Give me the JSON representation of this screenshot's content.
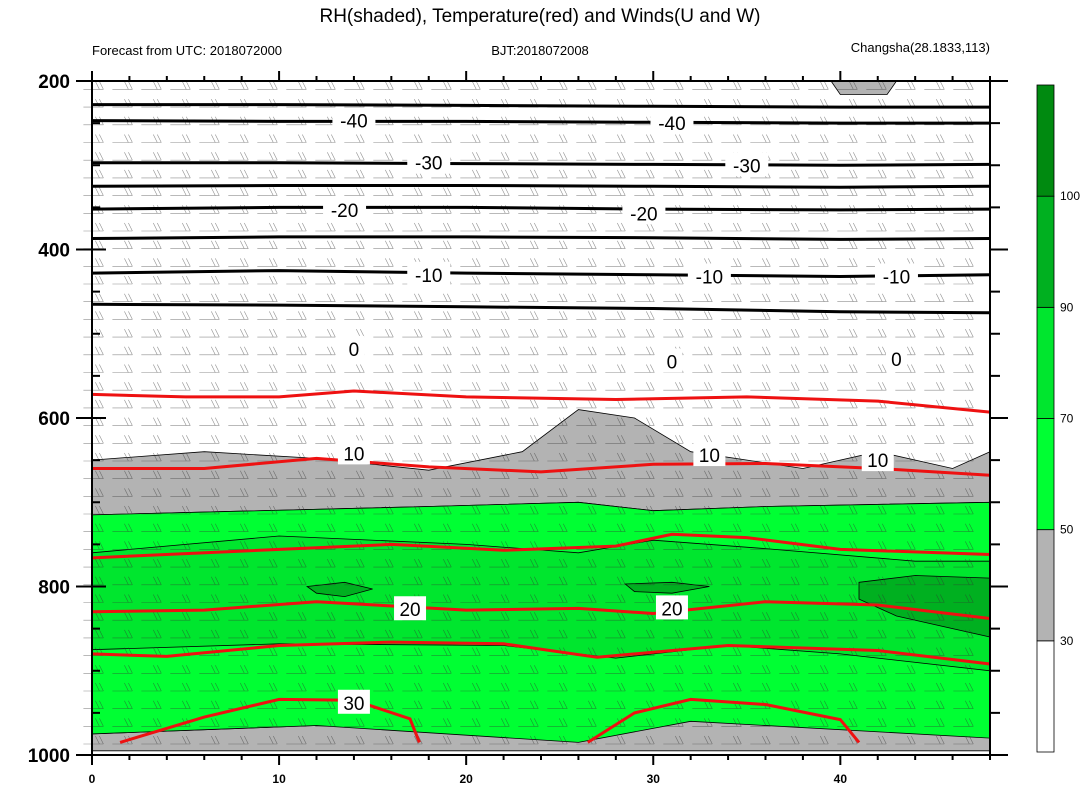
{
  "chart_data": {
    "type": "contour",
    "title": "RH(shaded), Temperature(red) and Winds(U and W)",
    "subtitle_left": "Forecast from UTC: 2018072000",
    "subtitle_center": "BJT:2018072008",
    "subtitle_right": "Changsha(28.1833,113)",
    "x_ticks": [
      0,
      10,
      20,
      30,
      40
    ],
    "xlim": [
      0,
      48
    ],
    "y_ticks": [
      200,
      400,
      600,
      800,
      1000
    ],
    "ylim": [
      1000,
      200
    ],
    "colorbar": {
      "ticks": [
        30,
        50,
        70,
        90,
        100
      ],
      "colors": [
        "#ffffff",
        "#b3b3b3",
        "#00ff33",
        "#00e62e",
        "#00b020",
        "#008a10"
      ]
    },
    "temperature_labels": [
      {
        "text": "-40",
        "x": 14.0,
        "p": 247
      },
      {
        "text": "-40",
        "x": 31.0,
        "p": 250
      },
      {
        "text": "-30",
        "x": 18.0,
        "p": 297
      },
      {
        "text": "-30",
        "x": 35.0,
        "p": 300
      },
      {
        "text": "-20",
        "x": 13.5,
        "p": 353
      },
      {
        "text": "-20",
        "x": 29.5,
        "p": 357
      },
      {
        "text": "-10",
        "x": 18.0,
        "p": 430
      },
      {
        "text": "-10",
        "x": 33.0,
        "p": 432
      },
      {
        "text": "-10",
        "x": 43.0,
        "p": 432
      },
      {
        "text": "0",
        "x": 14.0,
        "p": 518
      },
      {
        "text": "0",
        "x": 31.0,
        "p": 533
      },
      {
        "text": "0",
        "x": 43.0,
        "p": 530
      },
      {
        "text": "10",
        "x": 14.0,
        "p": 642
      },
      {
        "text": "10",
        "x": 33.0,
        "p": 644
      },
      {
        "text": "10",
        "x": 42.0,
        "p": 650
      },
      {
        "text": "20",
        "x": 17.0,
        "p": 827
      },
      {
        "text": "20",
        "x": 31.0,
        "p": 826
      },
      {
        "text": "30",
        "x": 14.0,
        "p": 938
      }
    ],
    "temperature_isotherms": [
      {
        "name": "-40",
        "color": "black",
        "points": [
          [
            0,
            228
          ],
          [
            10,
            228
          ],
          [
            20,
            229
          ],
          [
            30,
            230
          ],
          [
            40,
            231
          ],
          [
            48,
            231
          ]
        ]
      },
      {
        "name": "-40",
        "color": "black",
        "points": [
          [
            0,
            247
          ],
          [
            10,
            248
          ],
          [
            20,
            248
          ],
          [
            30,
            249
          ],
          [
            40,
            250
          ],
          [
            48,
            250
          ]
        ]
      },
      {
        "name": "-30",
        "color": "black",
        "points": [
          [
            0,
            297
          ],
          [
            10,
            297
          ],
          [
            20,
            298
          ],
          [
            30,
            299
          ],
          [
            40,
            300
          ],
          [
            48,
            299
          ]
        ]
      },
      {
        "name": "-30",
        "color": "black",
        "points": [
          [
            0,
            325
          ],
          [
            10,
            324
          ],
          [
            20,
            324
          ],
          [
            30,
            325
          ],
          [
            40,
            326
          ],
          [
            48,
            325
          ]
        ]
      },
      {
        "name": "-20",
        "color": "black",
        "points": [
          [
            0,
            352
          ],
          [
            10,
            350
          ],
          [
            20,
            350
          ],
          [
            30,
            352
          ],
          [
            40,
            353
          ],
          [
            48,
            352
          ]
        ]
      },
      {
        "name": "-20",
        "color": "black",
        "points": [
          [
            0,
            387
          ],
          [
            10,
            385
          ],
          [
            20,
            385
          ],
          [
            30,
            386
          ],
          [
            40,
            388
          ],
          [
            48,
            387
          ]
        ]
      },
      {
        "name": "-10",
        "color": "black",
        "points": [
          [
            0,
            428
          ],
          [
            10,
            425
          ],
          [
            20,
            428
          ],
          [
            30,
            430
          ],
          [
            40,
            432
          ],
          [
            48,
            430
          ]
        ]
      },
      {
        "name": "-10",
        "color": "black",
        "points": [
          [
            0,
            465
          ],
          [
            10,
            466
          ],
          [
            20,
            468
          ],
          [
            30,
            470
          ],
          [
            40,
            474
          ],
          [
            48,
            475
          ]
        ]
      },
      {
        "name": "0",
        "color": "red",
        "points": [
          [
            0,
            572
          ],
          [
            5,
            575
          ],
          [
            10,
            575
          ],
          [
            14,
            568
          ],
          [
            20,
            575
          ],
          [
            28,
            578
          ],
          [
            35,
            575
          ],
          [
            42,
            580
          ],
          [
            48,
            593
          ]
        ]
      },
      {
        "name": "10",
        "color": "red",
        "points": [
          [
            0,
            660
          ],
          [
            6,
            660
          ],
          [
            12,
            648
          ],
          [
            18,
            658
          ],
          [
            24,
            664
          ],
          [
            30,
            655
          ],
          [
            36,
            654
          ],
          [
            42,
            660
          ],
          [
            48,
            668
          ]
        ]
      },
      {
        "name": "20",
        "color": "red",
        "points": [
          [
            0,
            766
          ],
          [
            8,
            758
          ],
          [
            16,
            750
          ],
          [
            22,
            757
          ],
          [
            28,
            752
          ],
          [
            31,
            738
          ],
          [
            35,
            742
          ],
          [
            40,
            756
          ],
          [
            48,
            762
          ]
        ]
      },
      {
        "name": "20",
        "color": "red",
        "points": [
          [
            0,
            830
          ],
          [
            6,
            828
          ],
          [
            12,
            818
          ],
          [
            20,
            828
          ],
          [
            26,
            826
          ],
          [
            30,
            832
          ],
          [
            36,
            818
          ],
          [
            42,
            822
          ],
          [
            48,
            838
          ]
        ]
      },
      {
        "name": "20",
        "color": "red",
        "points": [
          [
            0,
            880
          ],
          [
            4,
            883
          ],
          [
            10,
            870
          ],
          [
            16,
            866
          ],
          [
            22,
            868
          ],
          [
            27,
            884
          ],
          [
            34,
            870
          ],
          [
            42,
            876
          ],
          [
            48,
            892
          ]
        ]
      },
      {
        "name": "30",
        "color": "red",
        "points": [
          [
            1.5,
            985
          ],
          [
            6,
            955
          ],
          [
            10,
            934
          ],
          [
            14,
            935
          ],
          [
            17,
            957
          ],
          [
            17.5,
            985
          ]
        ]
      },
      {
        "name": "30",
        "color": "red",
        "points": [
          [
            26.5,
            985
          ],
          [
            29,
            950
          ],
          [
            32,
            934
          ],
          [
            36,
            940
          ],
          [
            40,
            958
          ],
          [
            41,
            985
          ]
        ]
      }
    ],
    "rh_regions": [
      {
        "name": "RH 30-50 (upper)",
        "color": "#b3b3b3",
        "points": [
          [
            39.5,
            200
          ],
          [
            43,
            200
          ],
          [
            42.5,
            216
          ],
          [
            40,
            216
          ]
        ]
      },
      {
        "name": "RH 30-50 (mid)",
        "color": "#b3b3b3",
        "points": [
          [
            0,
            650
          ],
          [
            6,
            640
          ],
          [
            12,
            648
          ],
          [
            18,
            662
          ],
          [
            23,
            640
          ],
          [
            26,
            590
          ],
          [
            29,
            600
          ],
          [
            32,
            640
          ],
          [
            38,
            660
          ],
          [
            42,
            640
          ],
          [
            46,
            660
          ],
          [
            48,
            640
          ],
          [
            48,
            700
          ],
          [
            36,
            705
          ],
          [
            30,
            710
          ],
          [
            26,
            700
          ],
          [
            18,
            705
          ],
          [
            0,
            715
          ]
        ]
      },
      {
        "name": "RH 30-50 (lower)",
        "color": "#b3b3b3",
        "points": [
          [
            0,
            990
          ],
          [
            0,
            975
          ],
          [
            12,
            965
          ],
          [
            20,
            968
          ],
          [
            26,
            960
          ],
          [
            32,
            940
          ],
          [
            38,
            960
          ],
          [
            48,
            975
          ],
          [
            48,
            995
          ],
          [
            0,
            995
          ]
        ]
      },
      {
        "name": "RH 50-70",
        "color": "#00ff33",
        "points": [
          [
            0,
            715
          ],
          [
            18,
            705
          ],
          [
            26,
            700
          ],
          [
            30,
            710
          ],
          [
            36,
            705
          ],
          [
            48,
            700
          ],
          [
            48,
            980
          ],
          [
            32,
            960
          ],
          [
            26,
            985
          ],
          [
            12,
            965
          ],
          [
            0,
            975
          ]
        ]
      },
      {
        "name": "RH 70-90",
        "color": "#00e62e",
        "points": [
          [
            0,
            760
          ],
          [
            10,
            740
          ],
          [
            20,
            750
          ],
          [
            26,
            760
          ],
          [
            30,
            745
          ],
          [
            36,
            755
          ],
          [
            44,
            770
          ],
          [
            48,
            770
          ],
          [
            48,
            900
          ],
          [
            40,
            880
          ],
          [
            34,
            870
          ],
          [
            28,
            885
          ],
          [
            22,
            870
          ],
          [
            10,
            868
          ],
          [
            0,
            875
          ]
        ]
      },
      {
        "name": "RH 90-100 (a)",
        "color": "#00b020",
        "points": [
          [
            11.5,
            800
          ],
          [
            13.5,
            795
          ],
          [
            15,
            803
          ],
          [
            13.5,
            812
          ],
          [
            12,
            808
          ]
        ]
      },
      {
        "name": "RH 90-100 (b)",
        "color": "#00b020",
        "points": [
          [
            28.5,
            797
          ],
          [
            31,
            795
          ],
          [
            33,
            800
          ],
          [
            31,
            808
          ],
          [
            29,
            806
          ]
        ]
      },
      {
        "name": "RH 90-100 (c)",
        "color": "#00b020",
        "points": [
          [
            41,
            795
          ],
          [
            44,
            787
          ],
          [
            48,
            790
          ],
          [
            48,
            860
          ],
          [
            46,
            850
          ],
          [
            43,
            835
          ],
          [
            41,
            815
          ]
        ]
      }
    ]
  }
}
